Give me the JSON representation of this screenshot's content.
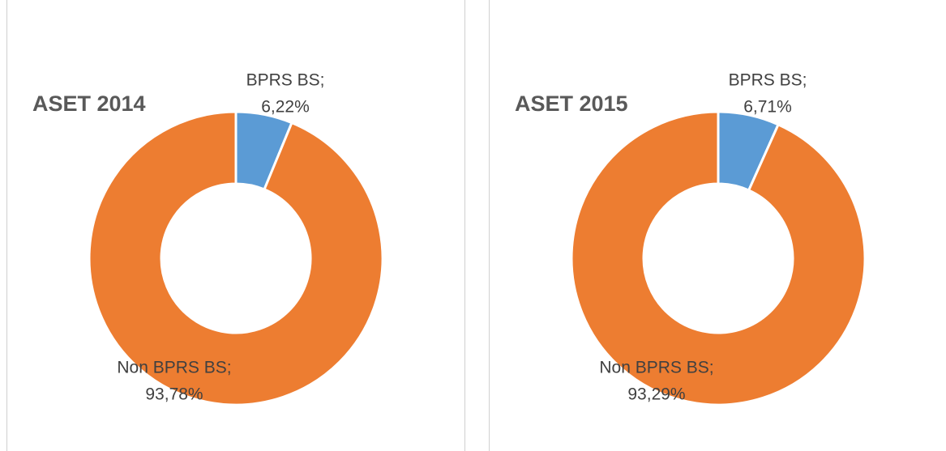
{
  "chart_data": [
    {
      "type": "donut",
      "title": "ASET 2014",
      "categories": [
        "BPRS BS;",
        "Non BPRS BS;"
      ],
      "values": [
        6.22,
        93.78
      ],
      "value_labels": [
        "6,22%",
        "93,78%"
      ],
      "colors": [
        "#5b9bd5",
        "#ed7d31"
      ]
    },
    {
      "type": "donut",
      "title": "ASET 2015",
      "categories": [
        "BPRS BS;",
        "Non BPRS BS;"
      ],
      "values": [
        6.71,
        93.29
      ],
      "value_labels": [
        "6,71%",
        "93,29%"
      ],
      "colors": [
        "#5b9bd5",
        "#ed7d31"
      ]
    }
  ]
}
